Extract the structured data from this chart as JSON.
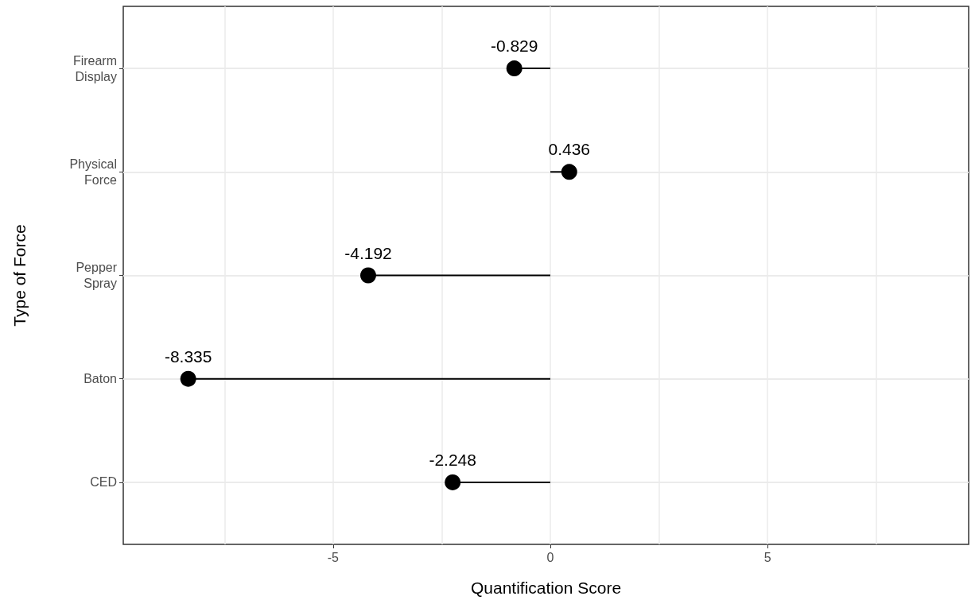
{
  "chart_data": {
    "type": "lollipop",
    "orientation": "horizontal",
    "xlabel": "Quantification Score",
    "ylabel": "Type of Force",
    "categories": [
      "Firearm Display",
      "Physical Force",
      "Pepper Spray",
      "Baton",
      "CED"
    ],
    "values": [
      -0.829,
      0.436,
      -4.192,
      -8.335,
      -2.248
    ],
    "color": "#000000",
    "xlim": [
      -9.83,
      9.63
    ],
    "xticks": [
      {
        "value": -7.5,
        "label": null
      },
      -5,
      {
        "value": -2.5,
        "label": null
      },
      0,
      {
        "value": 2.5,
        "label": null
      },
      5,
      {
        "value": 7.5,
        "label": null
      }
    ],
    "data_labels": true,
    "grid": true
  }
}
